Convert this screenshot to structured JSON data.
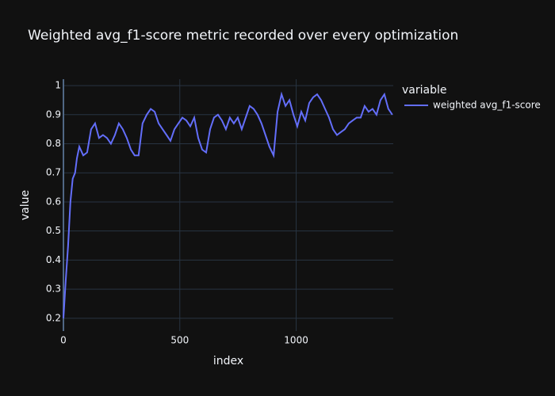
{
  "chart_data": {
    "type": "line",
    "title": "Weighted avg_f1-score metric recorded over every optimization",
    "x_label": "index",
    "y_label": "value",
    "legend_title": "variable",
    "x": [
      0,
      10,
      20,
      30,
      40,
      50,
      58,
      68,
      85,
      102,
      119,
      136,
      153,
      170,
      187,
      204,
      221,
      238,
      255,
      272,
      290,
      306,
      323,
      340,
      358,
      375,
      392,
      409,
      426,
      443,
      460,
      477,
      494,
      511,
      528,
      545,
      562,
      579,
      596,
      613,
      630,
      647,
      664,
      681,
      698,
      715,
      732,
      749,
      766,
      783,
      800,
      817,
      834,
      851,
      868,
      885,
      903,
      920,
      937,
      954,
      971,
      988,
      1005,
      1022,
      1039,
      1056,
      1073,
      1090,
      1107,
      1124,
      1141,
      1158,
      1175,
      1192,
      1209,
      1226,
      1243,
      1260,
      1277,
      1294,
      1311,
      1328,
      1345,
      1362,
      1379,
      1396,
      1413
    ],
    "series": [
      {
        "name": "weighted avg_f1-score",
        "color": "#636efa",
        "values": [
          0.2,
          0.33,
          0.45,
          0.6,
          0.68,
          0.7,
          0.75,
          0.79,
          0.76,
          0.77,
          0.85,
          0.87,
          0.82,
          0.83,
          0.82,
          0.8,
          0.83,
          0.87,
          0.85,
          0.82,
          0.78,
          0.76,
          0.76,
          0.87,
          0.9,
          0.92,
          0.91,
          0.87,
          0.85,
          0.83,
          0.81,
          0.85,
          0.87,
          0.89,
          0.88,
          0.86,
          0.89,
          0.82,
          0.78,
          0.77,
          0.85,
          0.89,
          0.9,
          0.88,
          0.85,
          0.89,
          0.87,
          0.89,
          0.85,
          0.89,
          0.93,
          0.92,
          0.9,
          0.87,
          0.83,
          0.79,
          0.76,
          0.91,
          0.97,
          0.93,
          0.95,
          0.9,
          0.86,
          0.91,
          0.88,
          0.94,
          0.96,
          0.97,
          0.95,
          0.92,
          0.89,
          0.85,
          0.83,
          0.84,
          0.85,
          0.87,
          0.88,
          0.89,
          0.89,
          0.93,
          0.91,
          0.92,
          0.9,
          0.95,
          0.97,
          0.92,
          0.9
        ]
      }
    ],
    "xlim": [
      0,
      1417
    ],
    "xticks": [
      0,
      500,
      1000
    ],
    "ylim": [
      0.156,
      1.022
    ],
    "yticks": [
      0.2,
      0.3,
      0.4,
      0.5,
      0.6,
      0.7,
      0.8,
      0.9,
      1
    ],
    "grid": true
  }
}
